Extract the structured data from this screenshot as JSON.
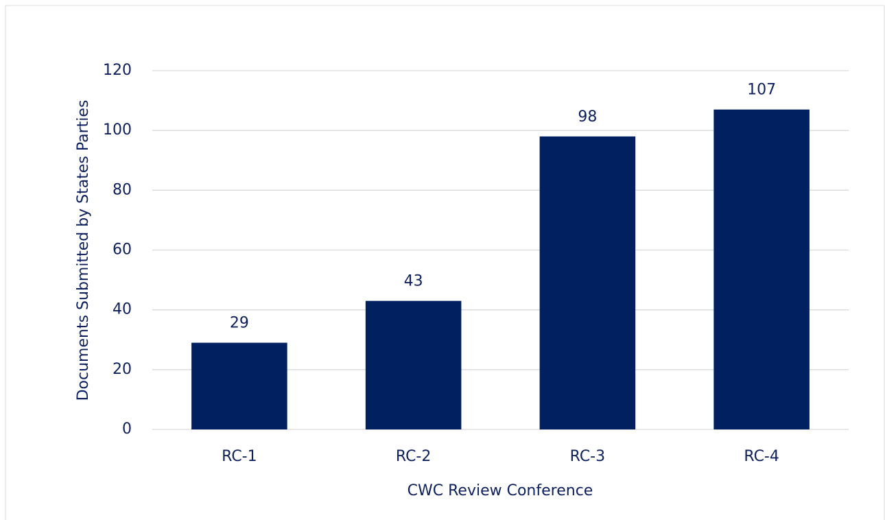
{
  "chart_data": {
    "type": "bar",
    "x_label": "CWC Review Conference",
    "y_label": "Documents Submitted by States Parties",
    "categories": [
      "RC-1",
      "RC-2",
      "RC-3",
      "RC-4"
    ],
    "values": [
      29,
      43,
      98,
      107
    ],
    "color": "#002060",
    "ylim": [
      0,
      120
    ],
    "yticks": [
      0,
      20,
      40,
      60,
      80,
      100,
      120
    ],
    "grid": true
  }
}
